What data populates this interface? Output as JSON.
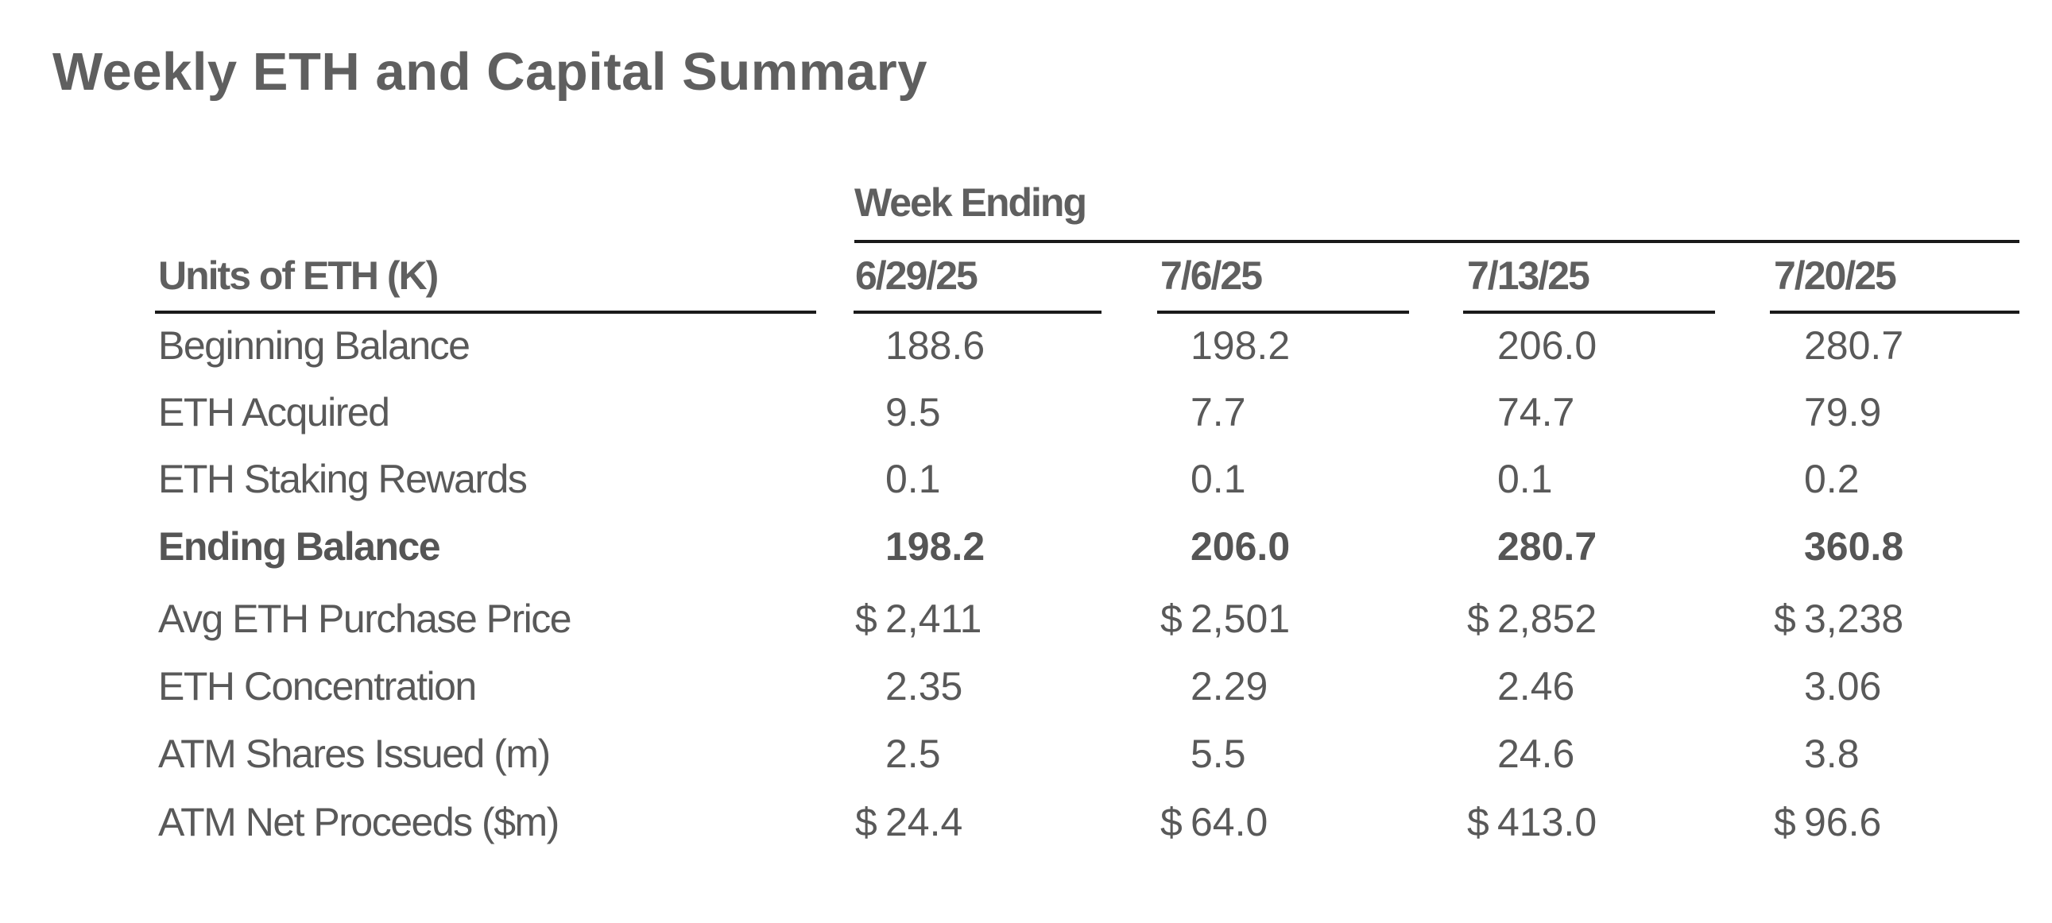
{
  "title": "Weekly ETH and Capital Summary",
  "group_header": "Week Ending",
  "row_header": "Units of ETH (K)",
  "columns": [
    "6/29/25",
    "7/6/25",
    "7/13/25",
    "7/20/25"
  ],
  "currency_symbol": "$",
  "rows": [
    {
      "label": "Beginning Balance",
      "values": [
        "188.6",
        "198.2",
        "206.0",
        "280.7"
      ],
      "currency": false,
      "bold": false
    },
    {
      "label": "ETH Acquired",
      "values": [
        "9.5",
        "7.7",
        "74.7",
        "79.9"
      ],
      "currency": false,
      "bold": false
    },
    {
      "label": "ETH Staking Rewards",
      "values": [
        "0.1",
        "0.1",
        "0.1",
        "0.2"
      ],
      "currency": false,
      "bold": false
    },
    {
      "label": "Ending Balance",
      "values": [
        "198.2",
        "206.0",
        "280.7",
        "360.8"
      ],
      "currency": false,
      "bold": true
    },
    {
      "label": "Avg ETH Purchase Price",
      "values": [
        "2,411",
        "2,501",
        "2,852",
        "3,238"
      ],
      "currency": true,
      "bold": false
    },
    {
      "label": "ETH Concentration",
      "values": [
        "2.35",
        "2.29",
        "2.46",
        "3.06"
      ],
      "currency": false,
      "bold": false
    },
    {
      "label": "ATM Shares Issued (m)",
      "values": [
        "2.5",
        "5.5",
        "24.6",
        "3.8"
      ],
      "currency": false,
      "bold": false
    },
    {
      "label": "ATM Net Proceeds ($m)",
      "values": [
        "24.4",
        "64.0",
        "413.0",
        "96.6"
      ],
      "currency": true,
      "bold": false
    }
  ]
}
